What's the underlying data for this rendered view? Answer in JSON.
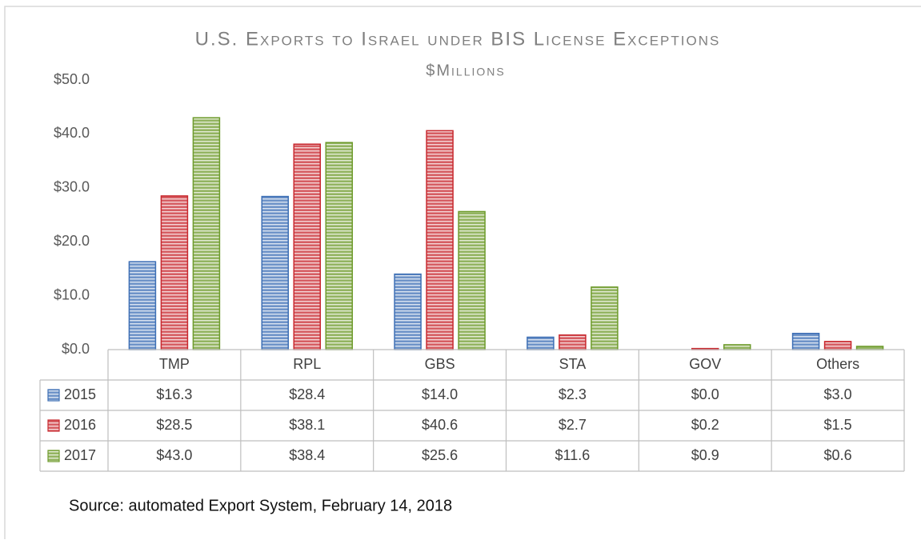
{
  "chart_data": {
    "type": "bar",
    "title": "U.S. Exports to Israel under BIS License Exceptions",
    "subtitle": "$Millions",
    "source": "Source: automated Export System, February 14, 2018",
    "categories": [
      "TMP",
      "RPL",
      "GBS",
      "STA",
      "GOV",
      "Others"
    ],
    "series": [
      {
        "name": "2015",
        "color": "#3d6fb5",
        "values": [
          16.3,
          28.4,
          14.0,
          2.3,
          0.0,
          3.0
        ],
        "value_labels": [
          "$16.3",
          "$28.4",
          "$14.0",
          "$2.3",
          "$0.0",
          "$3.0"
        ]
      },
      {
        "name": "2016",
        "color": "#c8282e",
        "values": [
          28.5,
          38.1,
          40.6,
          2.7,
          0.2,
          1.5
        ],
        "value_labels": [
          "$28.5",
          "$38.1",
          "$40.6",
          "$2.7",
          "$0.2",
          "$1.5"
        ]
      },
      {
        "name": "2017",
        "color": "#6e9b2c",
        "values": [
          43.0,
          38.4,
          25.6,
          11.6,
          0.9,
          0.6
        ],
        "value_labels": [
          "$43.0",
          "$38.4",
          "$25.6",
          "$11.6",
          "$0.9",
          "$0.6"
        ]
      }
    ],
    "ylim": [
      0,
      50
    ],
    "yticks": [
      {
        "value": 0,
        "label": "$0.0"
      },
      {
        "value": 10,
        "label": "$10.0"
      },
      {
        "value": 20,
        "label": "$20.0"
      },
      {
        "value": 30,
        "label": "$30.0"
      },
      {
        "value": 40,
        "label": "$40.0"
      },
      {
        "value": 50,
        "label": "$50.0"
      }
    ],
    "grid": false
  }
}
